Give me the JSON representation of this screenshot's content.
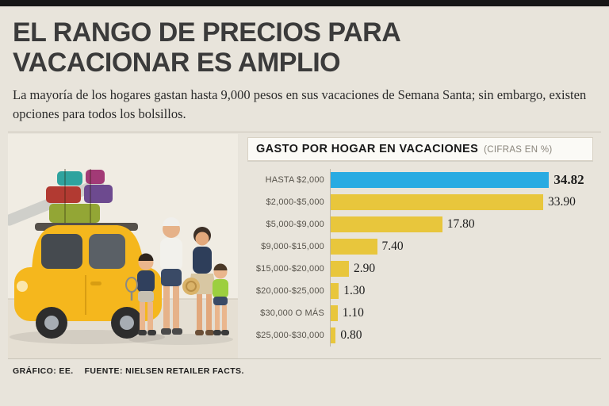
{
  "page": {
    "headline": "EL RANGO DE PRECIOS PARA VACACIONAR ES AMPLIO",
    "subtitle": "La mayoría de los hogares gastan hasta 9,000 pesos en sus vacaciones de Semana Santa; sin embargo, existen opciones para todos los bolsillos.",
    "footer": {
      "credit": "GRÁFICO: EE.",
      "source": "FUENTE: NIELSEN RETAILER FACTS."
    }
  },
  "chart": {
    "title": "GASTO POR HOGAR EN VACACIONES",
    "units_note": "(CIFRAS EN %)"
  },
  "colors": {
    "bar_blue": "#29abe2",
    "bar_yellow": "#e8c63c",
    "background": "#e8e4db"
  },
  "chart_data": {
    "type": "bar",
    "orientation": "horizontal",
    "title": "GASTO POR HOGAR EN VACACIONES (CIFRAS EN %)",
    "categories": [
      "HASTA $2,000",
      "$2,000-$5,000",
      "$5,000-$9,000",
      "$9,000-$15,000",
      "$15,000-$20,000",
      "$20,000-$25,000",
      "$30,000 O MÁS",
      "$25,000-$30,000"
    ],
    "values": [
      34.82,
      33.9,
      17.8,
      7.4,
      2.9,
      1.3,
      1.1,
      0.8
    ],
    "value_labels": [
      "34.82",
      "33.90",
      "17.80",
      "7.40",
      "2.90",
      "1.30",
      "1.10",
      "0.80"
    ],
    "highlight_index": 0,
    "xlim": [
      0,
      36
    ],
    "xlabel": "",
    "ylabel": "",
    "legend": false,
    "grid": false
  }
}
